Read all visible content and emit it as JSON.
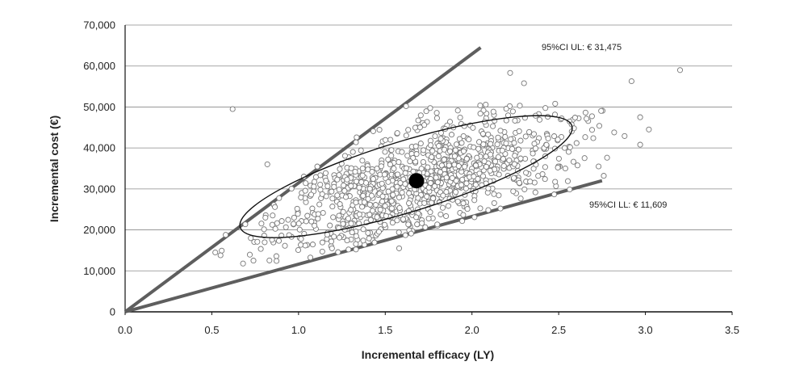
{
  "chart_data": {
    "type": "scatter",
    "xlabel": "Incremental efficacy (LY)",
    "ylabel": "Incremental cost (€)",
    "xlim": [
      0,
      3.5
    ],
    "ylim": [
      0,
      70000
    ],
    "x_ticks": [
      "0.0",
      "0.5",
      "1.0",
      "1.5",
      "2.0",
      "2.5",
      "3.0",
      "3.5"
    ],
    "y_ticks": [
      "0",
      "10,000",
      "20,000",
      "30,000",
      "40,000",
      "50,000",
      "60,000",
      "70,000"
    ],
    "grid": "horizontal",
    "point_estimate": {
      "x": 1.68,
      "y": 32000
    },
    "upper_limit_line": {
      "x": [
        0,
        2.05
      ],
      "y": [
        0,
        64500
      ],
      "label": "95%CI UL: € 31,475"
    },
    "lower_limit_line": {
      "x": [
        0,
        2.75
      ],
      "y": [
        0,
        32000
      ],
      "label": "95%CI LL: € 11,609"
    },
    "confidence_ellipse": {
      "center_x": 1.62,
      "center_y": 33000,
      "semi_axis_x": 1.0,
      "semi_axis_y": 6400,
      "rotation": "tilted upward-right"
    },
    "simulations": {
      "count": 1000,
      "mean_x": 1.68,
      "mean_y": 32000,
      "sd_x": 0.45,
      "sd_y": 8500,
      "correlation": 0.6
    },
    "outlier_points": [
      {
        "x": 0.62,
        "y": 49500
      },
      {
        "x": 0.52,
        "y": 14500
      },
      {
        "x": 0.55,
        "y": 13800
      },
      {
        "x": 0.58,
        "y": 18800
      },
      {
        "x": 0.68,
        "y": 11800
      },
      {
        "x": 0.74,
        "y": 12500
      },
      {
        "x": 0.82,
        "y": 36000
      },
      {
        "x": 2.22,
        "y": 58300
      },
      {
        "x": 2.3,
        "y": 55800
      },
      {
        "x": 2.48,
        "y": 50800
      },
      {
        "x": 2.92,
        "y": 56300
      },
      {
        "x": 3.2,
        "y": 59000
      },
      {
        "x": 2.97,
        "y": 47500
      },
      {
        "x": 3.02,
        "y": 44500
      },
      {
        "x": 2.97,
        "y": 40800
      },
      {
        "x": 2.76,
        "y": 33200
      },
      {
        "x": 2.73,
        "y": 35500
      },
      {
        "x": 2.82,
        "y": 43800
      },
      {
        "x": 2.88,
        "y": 42900
      },
      {
        "x": 1.62,
        "y": 50200
      },
      {
        "x": 1.58,
        "y": 15500
      },
      {
        "x": 1.95,
        "y": 26500
      }
    ],
    "annotations": [
      "95%CI UL: € 31,475",
      "95%CI LL: € 11,609"
    ]
  }
}
